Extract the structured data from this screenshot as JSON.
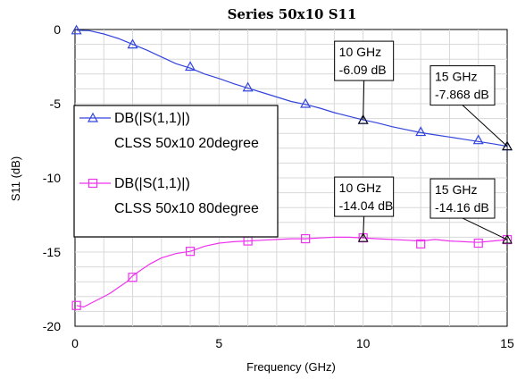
{
  "chart_data": {
    "type": "line",
    "title": "Series 50x10 S11",
    "xlabel": "Frequency (GHz)",
    "ylabel": "S11 (dB)",
    "xlim": [
      0,
      15
    ],
    "ylim": [
      -20,
      0
    ],
    "x_ticks": [
      "0",
      "5",
      "10",
      "15"
    ],
    "y_ticks": [
      "0",
      "-5",
      "-10",
      "-15",
      "-20"
    ],
    "grid": true,
    "legend_position": "left",
    "series": [
      {
        "name": "DB(|S(1,1)|)",
        "name_line2": "CLSS 50x10 20degree",
        "color": "#3344dd",
        "marker": "triangle",
        "x": [
          0.05,
          0.5,
          1,
          1.5,
          2,
          2.5,
          3,
          3.5,
          4,
          4.5,
          5,
          5.5,
          6,
          6.5,
          7,
          7.5,
          8,
          8.5,
          9,
          9.5,
          10,
          10.5,
          11,
          11.5,
          12,
          12.5,
          13,
          13.5,
          14,
          14.5,
          15
        ],
        "y": [
          -0.05,
          -0.08,
          -0.3,
          -0.6,
          -1.0,
          -1.4,
          -1.85,
          -2.3,
          -2.6,
          -3.0,
          -3.3,
          -3.65,
          -3.95,
          -4.25,
          -4.55,
          -4.85,
          -5.05,
          -5.3,
          -5.6,
          -5.85,
          -6.09,
          -6.3,
          -6.55,
          -6.75,
          -6.95,
          -7.1,
          -7.25,
          -7.4,
          -7.55,
          -7.7,
          -7.868
        ],
        "marker_x": [
          0.05,
          2,
          4,
          6,
          8,
          10,
          12,
          14,
          15
        ],
        "marker_y": [
          -0.05,
          -1.0,
          -2.5,
          -3.9,
          -5.0,
          -6.09,
          -6.9,
          -7.45,
          -7.868
        ]
      },
      {
        "name": "DB(|S(1,1)|)",
        "name_line2": "CLSS 50x10 80degree",
        "color": "#ee33ee",
        "marker": "square",
        "x": [
          0.05,
          0.3,
          0.6,
          0.9,
          1.2,
          1.5,
          1.8,
          2.0,
          2.3,
          2.6,
          3.0,
          3.5,
          4.0,
          4.5,
          5.0,
          5.5,
          6.0,
          6.5,
          7.0,
          7.5,
          8.0,
          8.5,
          9.0,
          9.5,
          10.0,
          10.5,
          11.0,
          11.5,
          12.0,
          12.5,
          13.0,
          13.5,
          14.0,
          14.5,
          15.0
        ],
        "y": [
          -18.6,
          -18.7,
          -18.4,
          -18.1,
          -17.8,
          -17.4,
          -17.0,
          -16.6,
          -16.2,
          -15.8,
          -15.4,
          -15.1,
          -14.95,
          -14.6,
          -14.4,
          -14.3,
          -14.25,
          -14.2,
          -14.15,
          -14.1,
          -14.1,
          -14.05,
          -14.0,
          -14.0,
          -14.04,
          -14.1,
          -14.15,
          -14.2,
          -14.25,
          -14.15,
          -14.25,
          -14.3,
          -14.35,
          -14.25,
          -14.16
        ],
        "marker_x": [
          0.05,
          2,
          4,
          6,
          8,
          10,
          12,
          14,
          15
        ],
        "marker_y": [
          -18.6,
          -16.7,
          -14.95,
          -14.25,
          -14.1,
          -14.04,
          -14.45,
          -14.4,
          -14.16
        ]
      }
    ],
    "annotations": [
      {
        "x": 10,
        "y": -6.09,
        "line1": "10 GHz",
        "line2": "-6.09 dB",
        "series": 0
      },
      {
        "x": 15,
        "y": -7.868,
        "line1": "15 GHz",
        "line2": "-7.868 dB",
        "series": 0
      },
      {
        "x": 10,
        "y": -14.04,
        "line1": "10 GHz",
        "line2": "-14.04 dB",
        "series": 1
      },
      {
        "x": 15,
        "y": -14.16,
        "line1": "15 GHz",
        "line2": "-14.16 dB",
        "series": 1
      }
    ]
  }
}
